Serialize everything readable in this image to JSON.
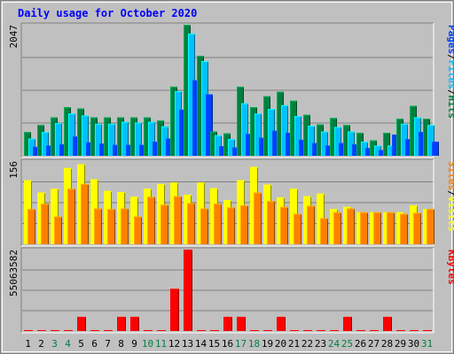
{
  "chart_data": {
    "type": "bar",
    "title": "Daily usage for October 2020",
    "categories": [
      "1",
      "2",
      "3",
      "4",
      "5",
      "6",
      "7",
      "8",
      "9",
      "10",
      "11",
      "12",
      "13",
      "14",
      "15",
      "16",
      "17",
      "18",
      "19",
      "20",
      "21",
      "22",
      "23",
      "24",
      "25",
      "26",
      "27",
      "28",
      "29",
      "30",
      "31"
    ],
    "weekend_days": [
      "3",
      "4",
      "10",
      "11",
      "17",
      "18",
      "24",
      "25",
      "31"
    ],
    "panels": [
      {
        "id": "hits-files-pages",
        "max_label": "2047",
        "ymax": 2047,
        "legend": [
          "Pages",
          "/",
          "Files",
          "/",
          "Hits"
        ],
        "series": [
          {
            "name": "Hits",
            "color": "#008040",
            "values": [
              370,
              480,
              600,
              760,
              740,
              600,
              600,
              600,
              600,
              600,
              550,
              1080,
              2047,
              1560,
              380,
              350,
              1080,
              760,
              930,
              1000,
              860,
              640,
              490,
              590,
              480,
              360,
              240,
              360,
              580,
              780,
              580
            ]
          },
          {
            "name": "Files",
            "color": "#00c0ff",
            "values": [
              270,
              370,
              510,
              660,
              630,
              500,
              500,
              530,
              520,
              530,
              460,
              1010,
              1910,
              1480,
              320,
              260,
              820,
              660,
              730,
              790,
              620,
              470,
              380,
              450,
              380,
              220,
              160,
              160,
              500,
              600,
              480
            ]
          },
          {
            "name": "Pages",
            "color": "#0040ff",
            "values": [
              140,
              160,
              180,
              300,
              210,
              190,
              170,
              170,
              170,
              220,
              270,
              720,
              1180,
              960,
              150,
              130,
              340,
              280,
              390,
              360,
              250,
              200,
              160,
              200,
              180,
              120,
              90,
              330,
              260,
              370,
              220
            ]
          }
        ]
      },
      {
        "id": "visits-sites",
        "max_label": "156",
        "ymax": 156,
        "legend": [
          "Sites",
          "/",
          "Visits"
        ],
        "series": [
          {
            "name": "Visits",
            "color": "#ffff00",
            "values": [
              120,
              97,
              104,
              143,
              150,
              122,
              100,
              98,
              89,
              104,
              113,
              116,
              93,
              116,
              105,
              83,
              120,
              145,
              112,
              88,
              104,
              90,
              95,
              66,
              70,
              60,
              60,
              60,
              60,
              73,
              66
            ]
          },
          {
            "name": "Sites",
            "color": "#ff8000",
            "values": [
              66,
              76,
              52,
              104,
              113,
              67,
              66,
              67,
              52,
              89,
              74,
              90,
              77,
              67,
              76,
              69,
              73,
              97,
              81,
              70,
              57,
              72,
              49,
              60,
              67,
              60,
              60,
              60,
              57,
              59,
              66
            ]
          }
        ]
      },
      {
        "id": "kbytes",
        "max_label": "55063582",
        "ymax": 55063582,
        "legend": [
          "KBytes"
        ],
        "series": [
          {
            "name": "KBytes",
            "color": "#ff0000",
            "values": [
              0,
              0,
              0,
              0,
              9600000,
              0,
              0,
              9600000,
              9600000,
              0,
              0,
              28500000,
              55063582,
              0,
              0,
              9600000,
              9600000,
              0,
              0,
              9600000,
              0,
              0,
              0,
              0,
              9600000,
              0,
              0,
              9600000,
              0,
              0,
              0
            ]
          }
        ]
      }
    ],
    "colors": {
      "background": "#c0c0c0",
      "title": "#0000ff",
      "grid": "#808080",
      "label": "#000000",
      "weekend_label": "#008040"
    }
  }
}
